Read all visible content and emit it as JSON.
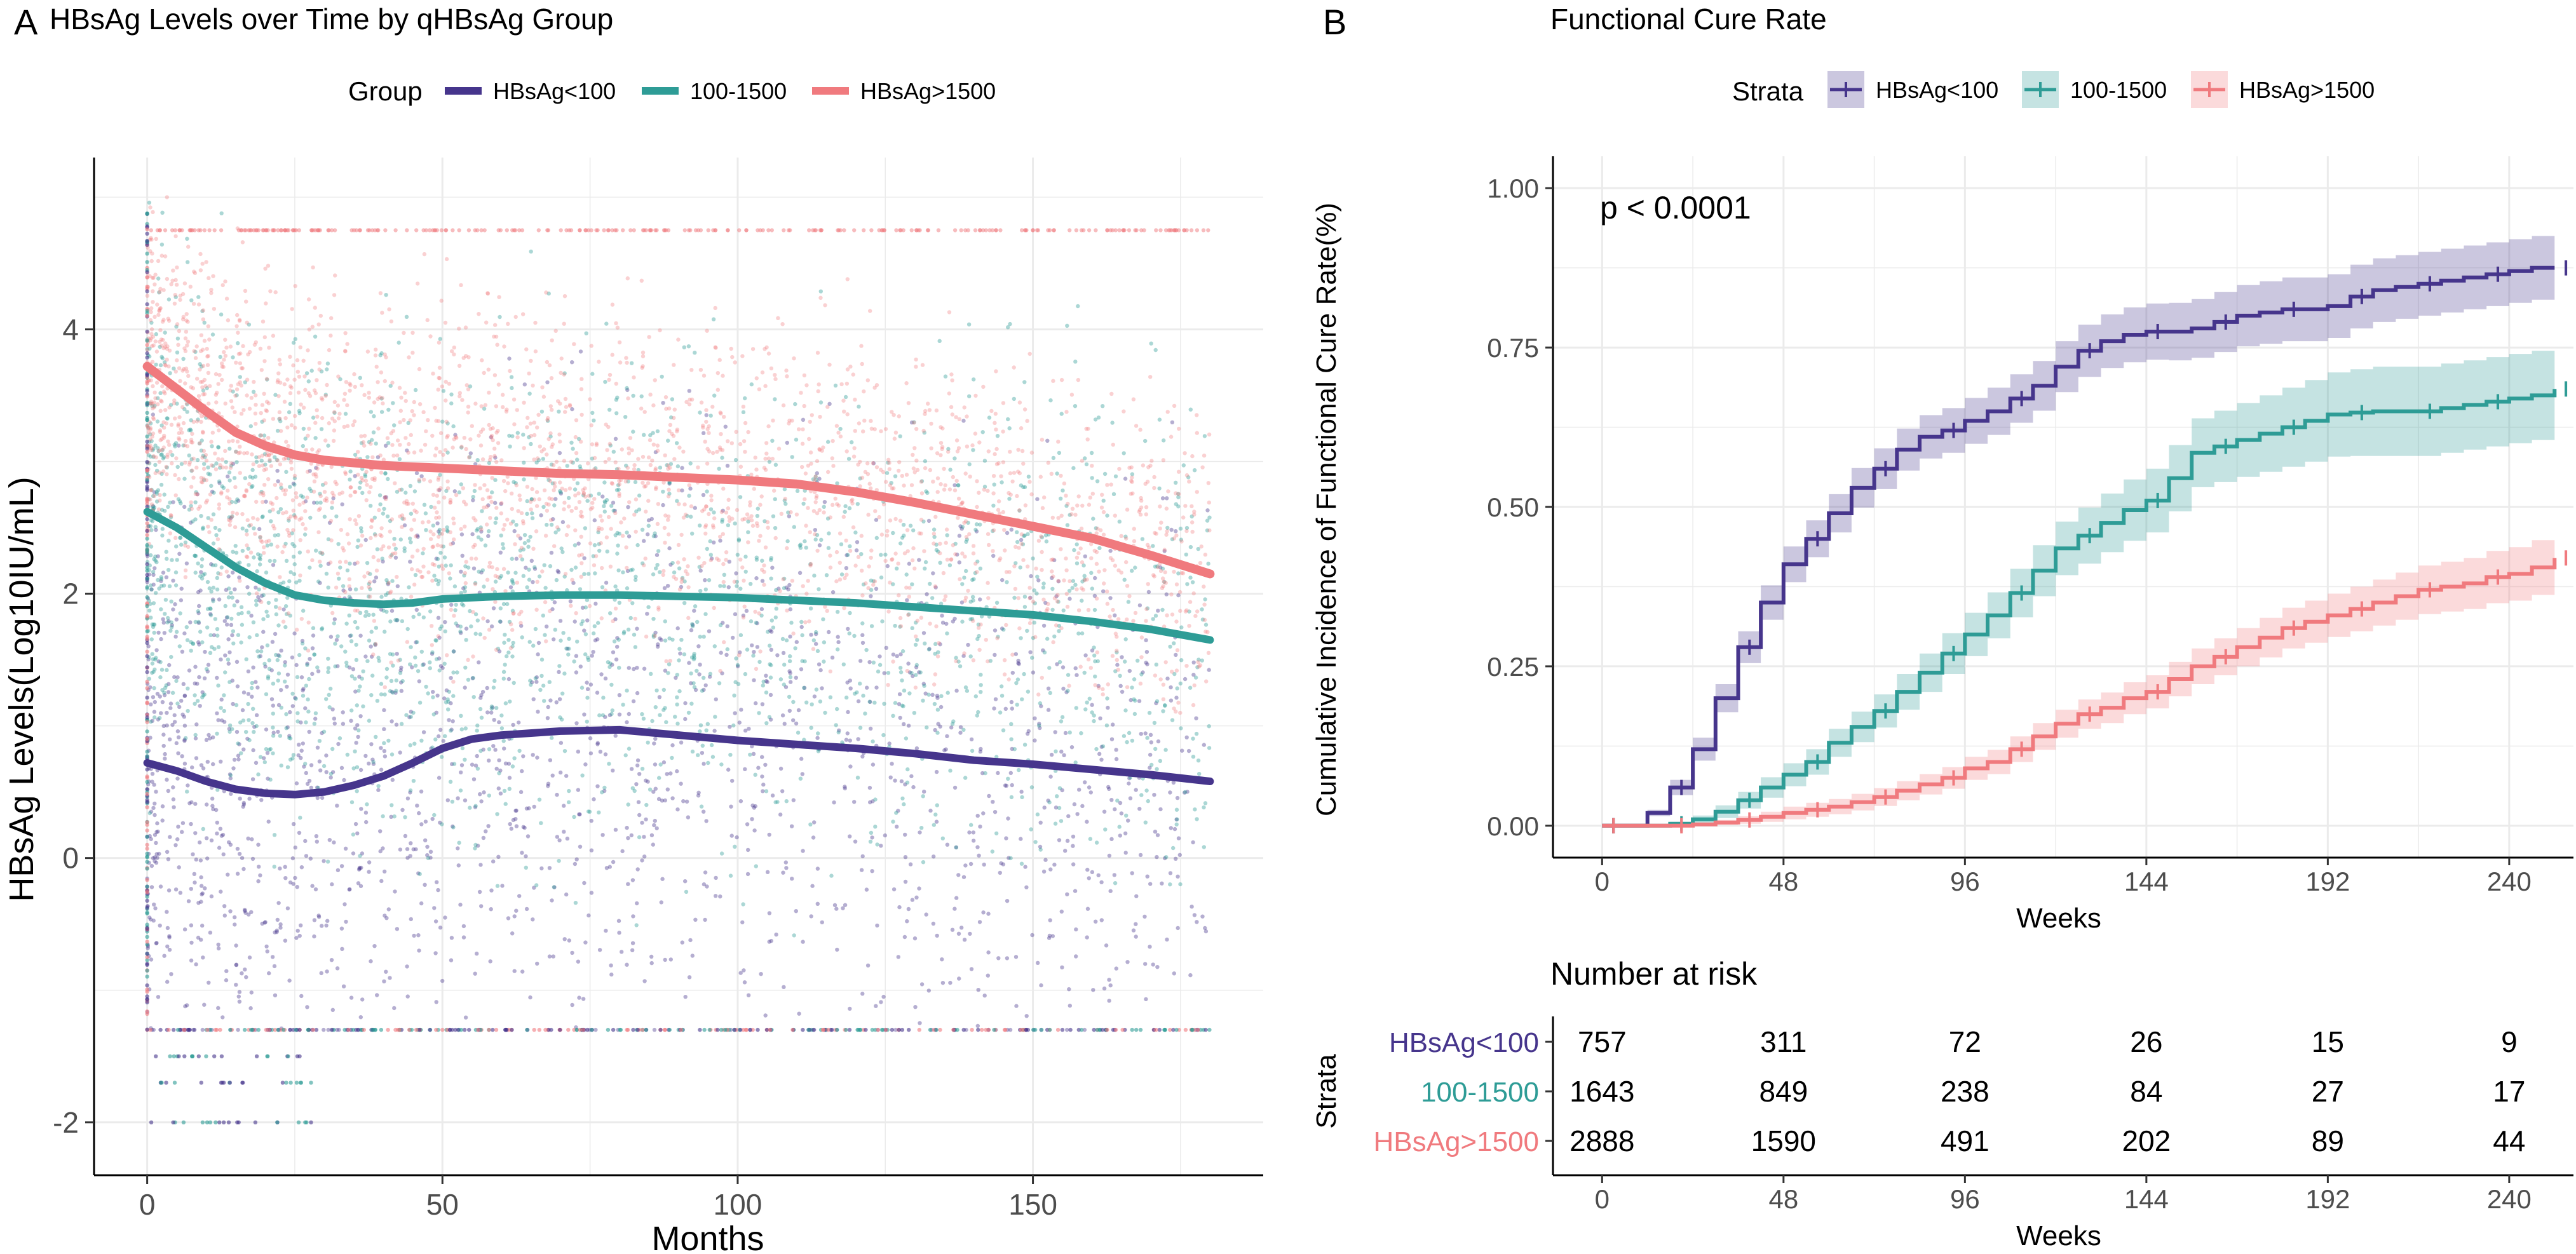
{
  "colors": {
    "hbsag_lt100": "#46358C",
    "mid_100_1500": "#2E9C96",
    "hbsag_gt1500": "#F07A7E",
    "grid": "#EBEBEB",
    "axis": "#000000"
  },
  "chart_data": [
    {
      "panel": "A",
      "type": "scatter",
      "title": "HBsAg Levels over Time by qHBsAg Group",
      "xlabel": "Months",
      "ylabel": "HBsAg Levels(Log10IU/mL)",
      "xlim": [
        -9,
        189
      ],
      "ylim": [
        -2.4,
        5.3
      ],
      "x_ticks": [
        0,
        50,
        100,
        150
      ],
      "x_tick_labels": [
        "0",
        "50",
        "100",
        "150"
      ],
      "y_ticks": [
        -2,
        0,
        2,
        4
      ],
      "y_tick_labels": [
        "-2",
        "0",
        "2",
        "4"
      ],
      "legend": {
        "position": "top",
        "title": "Group",
        "entries": [
          "HBsAg<100",
          "100-1500",
          "HBsAg>1500"
        ]
      },
      "point_clouds": {
        "description": "individual patient measurements, semi-transparent",
        "lod_level": -1.3,
        "cap_level": 4.75,
        "y_range": [
          -2.0,
          5.0
        ],
        "x_range": [
          0,
          180
        ]
      },
      "series": [
        {
          "name": "HBsAg<100",
          "smooth_x": [
            0,
            5,
            10,
            15,
            20,
            25,
            30,
            35,
            40,
            45,
            50,
            55,
            60,
            70,
            80,
            90,
            100,
            110,
            120,
            130,
            140,
            150,
            160,
            170,
            180
          ],
          "smooth_y": [
            0.72,
            0.66,
            0.58,
            0.52,
            0.49,
            0.48,
            0.5,
            0.55,
            0.62,
            0.72,
            0.83,
            0.9,
            0.93,
            0.96,
            0.97,
            0.93,
            0.89,
            0.86,
            0.83,
            0.79,
            0.74,
            0.71,
            0.67,
            0.63,
            0.58
          ]
        },
        {
          "name": "100-1500",
          "smooth_x": [
            0,
            5,
            10,
            15,
            20,
            25,
            30,
            35,
            40,
            45,
            50,
            60,
            70,
            80,
            90,
            100,
            110,
            120,
            130,
            140,
            150,
            160,
            170,
            180
          ],
          "smooth_y": [
            2.62,
            2.5,
            2.35,
            2.2,
            2.08,
            1.99,
            1.95,
            1.93,
            1.92,
            1.93,
            1.96,
            1.98,
            1.99,
            1.99,
            1.98,
            1.97,
            1.95,
            1.93,
            1.9,
            1.87,
            1.84,
            1.79,
            1.73,
            1.65
          ]
        },
        {
          "name": "HBsAg>1500",
          "smooth_x": [
            0,
            5,
            10,
            15,
            20,
            25,
            30,
            40,
            50,
            60,
            70,
            80,
            90,
            100,
            110,
            120,
            130,
            140,
            150,
            160,
            170,
            180
          ],
          "smooth_y": [
            3.72,
            3.55,
            3.38,
            3.22,
            3.12,
            3.05,
            3.01,
            2.97,
            2.95,
            2.93,
            2.91,
            2.9,
            2.88,
            2.86,
            2.83,
            2.77,
            2.69,
            2.6,
            2.51,
            2.42,
            2.29,
            2.15
          ]
        }
      ]
    },
    {
      "panel": "B",
      "type": "line",
      "title": "Functional Cure Rate",
      "xlabel": "Weeks",
      "ylabel": "Cumulative Incidence of Functional Cure Rate(%)",
      "xlim": [
        -13,
        257
      ],
      "ylim": [
        -0.05,
        1.05
      ],
      "x_ticks": [
        0,
        48,
        96,
        144,
        192,
        240
      ],
      "x_tick_labels": [
        "0",
        "48",
        "96",
        "144",
        "192",
        "240"
      ],
      "y_ticks": [
        0,
        0.25,
        0.5,
        0.75,
        1.0
      ],
      "y_tick_labels": [
        "0.00",
        "0.25",
        "0.50",
        "0.75",
        "1.00"
      ],
      "annotation": "p < 0.0001",
      "legend": {
        "position": "top",
        "title": "Strata",
        "entries": [
          "HBsAg<100",
          "100-1500",
          "HBsAg>1500"
        ]
      },
      "series": [
        {
          "name": "HBsAg<100",
          "x": [
            0,
            6,
            12,
            18,
            24,
            30,
            36,
            42,
            48,
            54,
            60,
            66,
            72,
            78,
            84,
            90,
            96,
            102,
            108,
            114,
            120,
            126,
            132,
            138,
            144,
            150,
            156,
            162,
            168,
            174,
            180,
            186,
            192,
            198,
            204,
            210,
            216,
            222,
            228,
            234,
            240,
            246,
            252
          ],
          "y": [
            0,
            0.0,
            0.02,
            0.06,
            0.12,
            0.2,
            0.28,
            0.35,
            0.41,
            0.45,
            0.49,
            0.53,
            0.56,
            0.59,
            0.61,
            0.62,
            0.635,
            0.65,
            0.67,
            0.69,
            0.72,
            0.745,
            0.76,
            0.77,
            0.775,
            0.775,
            0.78,
            0.79,
            0.8,
            0.805,
            0.81,
            0.81,
            0.815,
            0.83,
            0.84,
            0.845,
            0.85,
            0.855,
            0.86,
            0.865,
            0.87,
            0.875,
            0.875
          ],
          "ci_halfwidth": [
            0,
            0,
            0.005,
            0.012,
            0.018,
            0.022,
            0.025,
            0.027,
            0.028,
            0.029,
            0.03,
            0.031,
            0.032,
            0.033,
            0.034,
            0.035,
            0.036,
            0.037,
            0.038,
            0.039,
            0.04,
            0.041,
            0.042,
            0.043,
            0.044,
            0.045,
            0.046,
            0.047,
            0.048,
            0.049,
            0.05,
            0.05,
            0.05,
            0.05,
            0.05,
            0.05,
            0.05,
            0.05,
            0.05,
            0.05,
            0.05,
            0.05,
            0.05
          ]
        },
        {
          "name": "100-1500",
          "x": [
            0,
            6,
            12,
            18,
            24,
            30,
            36,
            42,
            48,
            54,
            60,
            66,
            72,
            78,
            84,
            90,
            96,
            102,
            108,
            114,
            120,
            126,
            132,
            138,
            144,
            150,
            156,
            162,
            168,
            174,
            180,
            186,
            192,
            198,
            204,
            210,
            216,
            222,
            228,
            234,
            240,
            246,
            252
          ],
          "y": [
            0,
            0.0,
            0.0,
            0.003,
            0.01,
            0.022,
            0.04,
            0.06,
            0.08,
            0.1,
            0.13,
            0.155,
            0.18,
            0.21,
            0.24,
            0.27,
            0.3,
            0.33,
            0.365,
            0.4,
            0.435,
            0.455,
            0.475,
            0.495,
            0.51,
            0.545,
            0.585,
            0.595,
            0.605,
            0.615,
            0.625,
            0.635,
            0.645,
            0.648,
            0.65,
            0.65,
            0.65,
            0.655,
            0.66,
            0.665,
            0.67,
            0.675,
            0.685
          ],
          "ci_halfwidth": [
            0,
            0,
            0,
            0.003,
            0.006,
            0.01,
            0.013,
            0.016,
            0.018,
            0.02,
            0.022,
            0.024,
            0.026,
            0.028,
            0.03,
            0.032,
            0.034,
            0.036,
            0.038,
            0.04,
            0.042,
            0.044,
            0.046,
            0.048,
            0.05,
            0.052,
            0.054,
            0.056,
            0.058,
            0.06,
            0.062,
            0.064,
            0.066,
            0.068,
            0.07,
            0.07,
            0.07,
            0.07,
            0.07,
            0.07,
            0.07,
            0.07,
            0.07
          ]
        },
        {
          "name": "HBsAg>1500",
          "x": [
            0,
            6,
            12,
            18,
            24,
            30,
            36,
            42,
            48,
            54,
            60,
            66,
            72,
            78,
            84,
            90,
            96,
            102,
            108,
            114,
            120,
            126,
            132,
            138,
            144,
            150,
            156,
            162,
            168,
            174,
            180,
            186,
            192,
            198,
            204,
            210,
            216,
            222,
            228,
            234,
            240,
            246,
            252
          ],
          "y": [
            0,
            0.0,
            0.0,
            0.0,
            0.002,
            0.005,
            0.009,
            0.014,
            0.02,
            0.025,
            0.03,
            0.037,
            0.045,
            0.055,
            0.065,
            0.075,
            0.09,
            0.1,
            0.12,
            0.14,
            0.16,
            0.175,
            0.185,
            0.2,
            0.21,
            0.23,
            0.25,
            0.265,
            0.28,
            0.295,
            0.31,
            0.32,
            0.33,
            0.34,
            0.35,
            0.36,
            0.37,
            0.375,
            0.38,
            0.39,
            0.395,
            0.405,
            0.42
          ],
          "ci_halfwidth": [
            0,
            0,
            0,
            0,
            0.002,
            0.004,
            0.006,
            0.008,
            0.01,
            0.011,
            0.012,
            0.013,
            0.014,
            0.015,
            0.016,
            0.017,
            0.018,
            0.019,
            0.02,
            0.021,
            0.022,
            0.023,
            0.024,
            0.025,
            0.026,
            0.027,
            0.028,
            0.029,
            0.03,
            0.031,
            0.032,
            0.033,
            0.034,
            0.035,
            0.036,
            0.037,
            0.038,
            0.039,
            0.04,
            0.041,
            0.042,
            0.043,
            0.044
          ]
        }
      ]
    },
    {
      "panel": "B-risk-table",
      "type": "table",
      "title": "Number at risk",
      "xlabel": "Weeks",
      "ylabel": "Strata",
      "x_ticks": [
        0,
        48,
        96,
        144,
        192,
        240
      ],
      "x_tick_labels": [
        "0",
        "48",
        "96",
        "144",
        "192",
        "240"
      ],
      "rows": [
        {
          "name": "HBsAg<100",
          "values": [
            "757",
            "311",
            "72",
            "26",
            "15",
            "9"
          ]
        },
        {
          "name": "100-1500",
          "values": [
            "1643",
            "849",
            "238",
            "84",
            "27",
            "17"
          ]
        },
        {
          "name": "HBsAg>1500",
          "values": [
            "2888",
            "1590",
            "491",
            "202",
            "89",
            "44"
          ]
        }
      ]
    }
  ],
  "panel_labels": [
    "A",
    "B"
  ]
}
